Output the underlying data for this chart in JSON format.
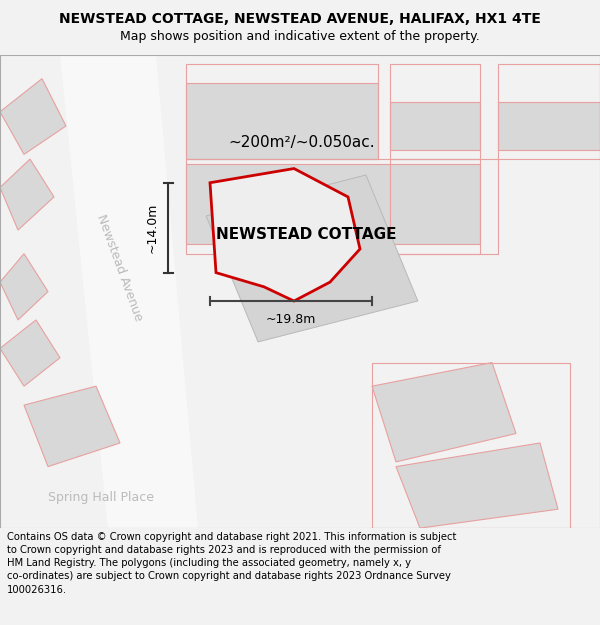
{
  "title": "NEWSTEAD COTTAGE, NEWSTEAD AVENUE, HALIFAX, HX1 4TE",
  "subtitle": "Map shows position and indicative extent of the property.",
  "footer": "Contains OS data © Crown copyright and database right 2021. This information is subject to Crown copyright and database rights 2023 and is reproduced with the permission of HM Land Registry. The polygons (including the associated geometry, namely x, y co-ordinates) are subject to Crown copyright and database rights 2023 Ordnance Survey 100026316.",
  "property_label": "NEWSTEAD COTTAGE",
  "area_label": "~200m²/~0.050ac.",
  "dim_height": "~14.0m",
  "dim_width": "~19.8m",
  "street1": "Newstead Avenue",
  "street2": "Spring Hall Place",
  "map_bg": "#ffffff",
  "building_fill": "#d8d8d8",
  "building_edge_color": "#e8a0a0",
  "property_fill": "#e8e8e8",
  "property_edge": "#cc0000",
  "title_fontsize": 10,
  "subtitle_fontsize": 9,
  "footer_fontsize": 7.2,
  "prop_label_fontsize": 11,
  "area_label_fontsize": 11,
  "dim_fontsize": 9,
  "street_fontsize": 9
}
